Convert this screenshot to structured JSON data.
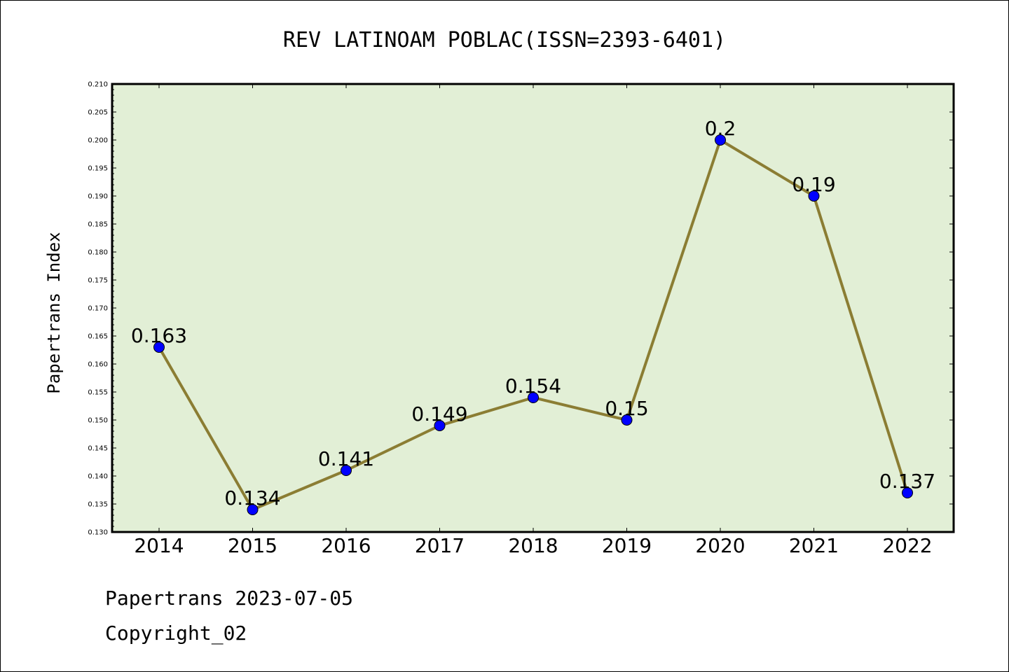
{
  "chart_data": {
    "type": "line",
    "title": "REV LATINOAM POBLAC(ISSN=2393-6401)",
    "xlabel": "",
    "ylabel": "Papertrans Index",
    "categories": [
      "2014",
      "2015",
      "2016",
      "2017",
      "2018",
      "2019",
      "2020",
      "2021",
      "2022"
    ],
    "values": [
      0.163,
      0.134,
      0.141,
      0.149,
      0.154,
      0.15,
      0.2,
      0.19,
      0.137
    ],
    "data_labels": [
      "0.163",
      "0.134",
      "0.141",
      "0.149",
      "0.154",
      "0.15",
      "0.2",
      "0.19",
      "0.137"
    ],
    "ylim": [
      0.13,
      0.21
    ],
    "yticks": [
      "0.130",
      "0.135",
      "0.140",
      "0.145",
      "0.150",
      "0.155",
      "0.160",
      "0.165",
      "0.170",
      "0.175",
      "0.180",
      "0.185",
      "0.190",
      "0.195",
      "0.200",
      "0.205",
      "0.210"
    ],
    "grid": false,
    "colors": {
      "plot_background": "#e2efd6",
      "line": "#8b7d33",
      "marker": "#0000ff"
    }
  },
  "footer": {
    "line1": "Papertrans 2023-07-05",
    "line2": "Copyright_02"
  }
}
